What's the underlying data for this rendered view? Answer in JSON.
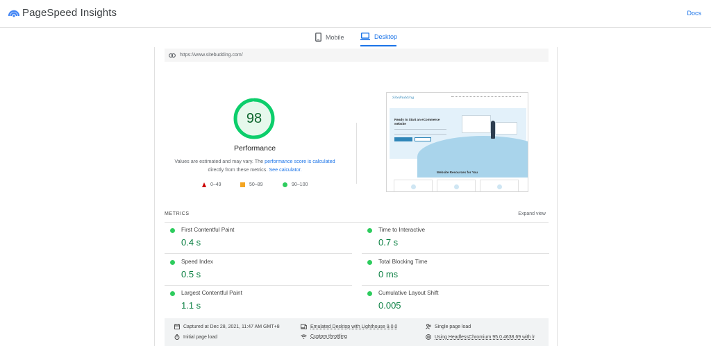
{
  "app": {
    "brand": "PageSpeed Insights",
    "docs_label": "Docs",
    "accent_color": "#1a73e8"
  },
  "tabs": [
    {
      "label": "Mobile",
      "icon": "phone-icon",
      "selected": false
    },
    {
      "label": "Desktop",
      "icon": "laptop-icon",
      "selected": true
    }
  ],
  "url": "https://www.sitebudding.com/",
  "performance": {
    "score": "98",
    "score_fraction": 0.98,
    "title": "Performance",
    "note_prefix": "Values are estimated and may vary. The ",
    "note_link1": "performance score is calculated",
    "note_middle": " directly from these metrics. ",
    "note_link2": "See calculator.",
    "pass_color": "#0cce6b"
  },
  "legend": [
    {
      "range": "0–49",
      "shape": "triangle",
      "color": "#cc0000"
    },
    {
      "range": "50–89",
      "shape": "square",
      "color": "#f4a522"
    },
    {
      "range": "90–100",
      "shape": "circle",
      "color": "#2ecc5e"
    }
  ],
  "screenshot": {
    "logo": "SiteBudding",
    "hero_title": "Ready to Start an eCommerce website",
    "section_title": "Website Resources for You"
  },
  "metrics": {
    "label": "METRICS",
    "expand_label": "Expand view",
    "items": [
      {
        "title": "First Contentful Paint",
        "value": "0.4 s"
      },
      {
        "title": "Time to Interactive",
        "value": "0.7 s"
      },
      {
        "title": "Speed Index",
        "value": "0.5 s"
      },
      {
        "title": "Total Blocking Time",
        "value": "0 ms"
      },
      {
        "title": "Largest Contentful Paint",
        "value": "1.1 s"
      },
      {
        "title": "Cumulative Layout Shift",
        "value": "0.005"
      }
    ]
  },
  "footer": {
    "captured": "Captured at Dec 28, 2021, 11:47 AM GMT+8",
    "emulated": "Emulated Desktop with Lighthouse 9.0.0",
    "single_page": "Single page load",
    "initial_load": "Initial page load",
    "throttling": "Custom throttling",
    "browser": "Using HeadlessChromium 95.0.4638.69 with lr"
  }
}
